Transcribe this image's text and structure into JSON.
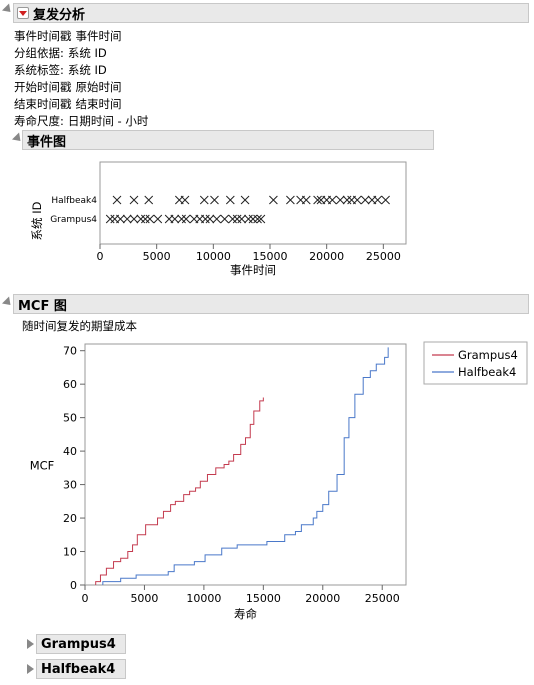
{
  "report": {
    "title": "复发分析",
    "info": [
      {
        "key": "事件时间戳",
        "value": "事件时间"
      },
      {
        "key": "分组依据:",
        "value": "系统 ID"
      },
      {
        "key": "系统标签:",
        "value": "系统 ID"
      },
      {
        "key": "开始时间戳",
        "value": "原始时间"
      },
      {
        "key": "结束时间戳",
        "value": "结束时间"
      },
      {
        "key": "寿命尺度:",
        "value": "日期时间 - 小时"
      }
    ]
  },
  "event_plot": {
    "title": "事件图",
    "chart_data": {
      "type": "scatter",
      "xlabel": "事件时间",
      "ylabel": "系统 ID",
      "xlim": [
        0,
        27000
      ],
      "xticks": [
        0,
        5000,
        10000,
        15000,
        20000,
        25000
      ],
      "categories": [
        "Halfbeak4",
        "Grampus4"
      ],
      "series": [
        {
          "name": "Halfbeak4",
          "marker": "x",
          "values": [
            1500,
            3000,
            4300,
            7000,
            7500,
            9200,
            10100,
            11500,
            12800,
            15300,
            16800,
            17700,
            18200,
            19200,
            19500,
            20000,
            20500,
            21200,
            21800,
            22200,
            22700,
            23400,
            24000,
            24500,
            25200
          ]
        },
        {
          "name": "Grampus4",
          "marker": "x",
          "values": [
            900,
            1300,
            1800,
            2400,
            3000,
            3600,
            4000,
            4400,
            5100,
            6100,
            6600,
            7200,
            7600,
            8300,
            8800,
            9300,
            9700,
            10300,
            11000,
            11700,
            12100,
            12500,
            13100,
            13500,
            13900,
            14200
          ]
        }
      ]
    }
  },
  "mcf_plot": {
    "title": "MCF 图",
    "subtitle": "随时间复发的期望成本",
    "chart_data": {
      "type": "line",
      "step": true,
      "xlabel": "寿命",
      "ylabel": "MCF",
      "xlim": [
        0,
        27000
      ],
      "ylim": [
        0,
        72
      ],
      "xticks": [
        0,
        5000,
        10000,
        15000,
        20000,
        25000
      ],
      "yticks": [
        0,
        10,
        20,
        30,
        40,
        50,
        60,
        70
      ],
      "legend_position": "top-right",
      "colors": {
        "Grampus4": "#c43b4f",
        "Halfbeak4": "#4a78c9"
      },
      "series": [
        {
          "name": "Grampus4",
          "x": [
            900,
            1300,
            1800,
            2400,
            3000,
            3600,
            4000,
            4400,
            5100,
            6100,
            6600,
            7200,
            7600,
            8300,
            8800,
            9300,
            9700,
            10300,
            11000,
            11700,
            12100,
            12500,
            13100,
            13500,
            13900,
            14200,
            14700,
            15000
          ],
          "y": [
            1,
            3,
            5,
            7,
            8,
            10,
            12,
            15,
            18,
            20,
            22,
            24,
            25,
            27,
            28,
            29,
            31,
            33,
            35,
            36,
            37,
            39,
            42,
            44,
            48,
            52,
            55,
            56
          ]
        },
        {
          "name": "Halfbeak4",
          "x": [
            1500,
            3000,
            4300,
            7000,
            7500,
            9200,
            10100,
            11500,
            12800,
            15300,
            16800,
            17700,
            18200,
            19200,
            19500,
            20000,
            20500,
            21200,
            21800,
            22200,
            22700,
            23400,
            24000,
            24500,
            25200,
            25500
          ],
          "y": [
            1,
            2,
            3,
            4,
            6,
            7,
            9,
            11,
            12,
            13,
            15,
            16,
            18,
            20,
            22,
            24,
            28,
            33,
            44,
            50,
            57,
            62,
            64,
            66,
            68,
            71
          ]
        }
      ]
    }
  },
  "collapsed": {
    "grampus": "Grampus4",
    "halfbeak": "Halfbeak4"
  }
}
